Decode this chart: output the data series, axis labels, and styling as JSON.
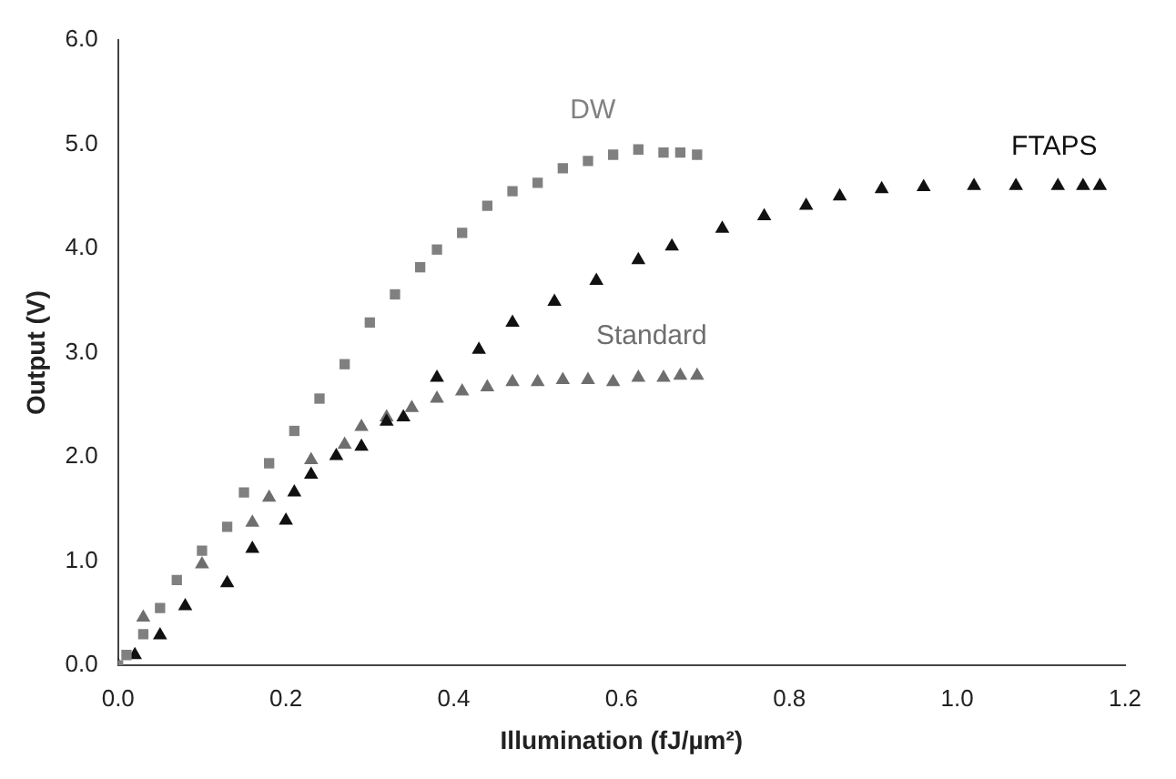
{
  "chart_data": {
    "type": "scatter",
    "xlabel": "Illumination (fJ/µm²)",
    "ylabel": "Output (V)",
    "xlim": [
      0,
      1.2
    ],
    "ylim": [
      0,
      6
    ],
    "xticks": [
      {
        "value": 0,
        "label": "0.0"
      },
      {
        "value": 0.2,
        "label": "0.2"
      },
      {
        "value": 0.4,
        "label": "0.4"
      },
      {
        "value": 0.6,
        "label": "0.6"
      },
      {
        "value": 0.8,
        "label": "0.8"
      },
      {
        "value": 1,
        "label": "1.0"
      },
      {
        "value": 1.2,
        "label": "1.2"
      }
    ],
    "yticks": [
      {
        "value": 0,
        "label": "0.0"
      },
      {
        "value": 1,
        "label": "1.0"
      },
      {
        "value": 2,
        "label": "2.0"
      },
      {
        "value": 3,
        "label": "3.0"
      },
      {
        "value": 4,
        "label": "4.0"
      },
      {
        "value": 5,
        "label": "5.0"
      },
      {
        "value": 6,
        "label": "6.0"
      }
    ],
    "grid": false,
    "legend": false,
    "series": [
      {
        "name": "DW",
        "color": "#808080",
        "marker": "square",
        "x": [
          0,
          0.01,
          0.03,
          0.05,
          0.07,
          0.1,
          0.13,
          0.15,
          0.18,
          0.21,
          0.24,
          0.27,
          0.3,
          0.33,
          0.36,
          0.38,
          0.41,
          0.44,
          0.47,
          0.5,
          0.53,
          0.56,
          0.59,
          0.62,
          0.65,
          0.67,
          0.69
        ],
        "values": [
          0,
          0.1,
          0.3,
          0.55,
          0.82,
          1.1,
          1.33,
          1.66,
          1.94,
          2.25,
          2.56,
          2.89,
          3.29,
          3.56,
          3.82,
          3.99,
          4.15,
          4.41,
          4.55,
          4.63,
          4.77,
          4.84,
          4.9,
          4.95,
          4.92,
          4.92,
          4.9
        ]
      },
      {
        "name": "FTAPS",
        "color": "#111111",
        "marker": "triangle",
        "x": [
          0,
          0.02,
          0.05,
          0.08,
          0.13,
          0.16,
          0.2,
          0.21,
          0.23,
          0.26,
          0.29,
          0.32,
          0.34,
          0.38,
          0.43,
          0.47,
          0.52,
          0.57,
          0.62,
          0.66,
          0.72,
          0.77,
          0.82,
          0.86,
          0.91,
          0.96,
          1.02,
          1.07,
          1.12,
          1.15,
          1.17
        ],
        "values": [
          0,
          0.1,
          0.29,
          0.57,
          0.79,
          1.12,
          1.39,
          1.66,
          1.83,
          2.01,
          2.1,
          2.34,
          2.38,
          2.76,
          3.03,
          3.29,
          3.49,
          3.69,
          3.89,
          4.02,
          4.19,
          4.31,
          4.41,
          4.5,
          4.57,
          4.59,
          4.6,
          4.6,
          4.6,
          4.6,
          4.6
        ]
      },
      {
        "name": "Standard",
        "color": "#6e6e6e",
        "marker": "triangle",
        "x": [
          0.03,
          0.1,
          0.16,
          0.18,
          0.23,
          0.27,
          0.29,
          0.32,
          0.35,
          0.38,
          0.41,
          0.44,
          0.47,
          0.5,
          0.53,
          0.56,
          0.59,
          0.62,
          0.65,
          0.67,
          0.69
        ],
        "values": [
          0.46,
          0.97,
          1.37,
          1.61,
          1.97,
          2.12,
          2.29,
          2.38,
          2.47,
          2.56,
          2.63,
          2.67,
          2.72,
          2.72,
          2.74,
          2.74,
          2.72,
          2.76,
          2.76,
          2.78,
          2.78
        ]
      }
    ]
  }
}
